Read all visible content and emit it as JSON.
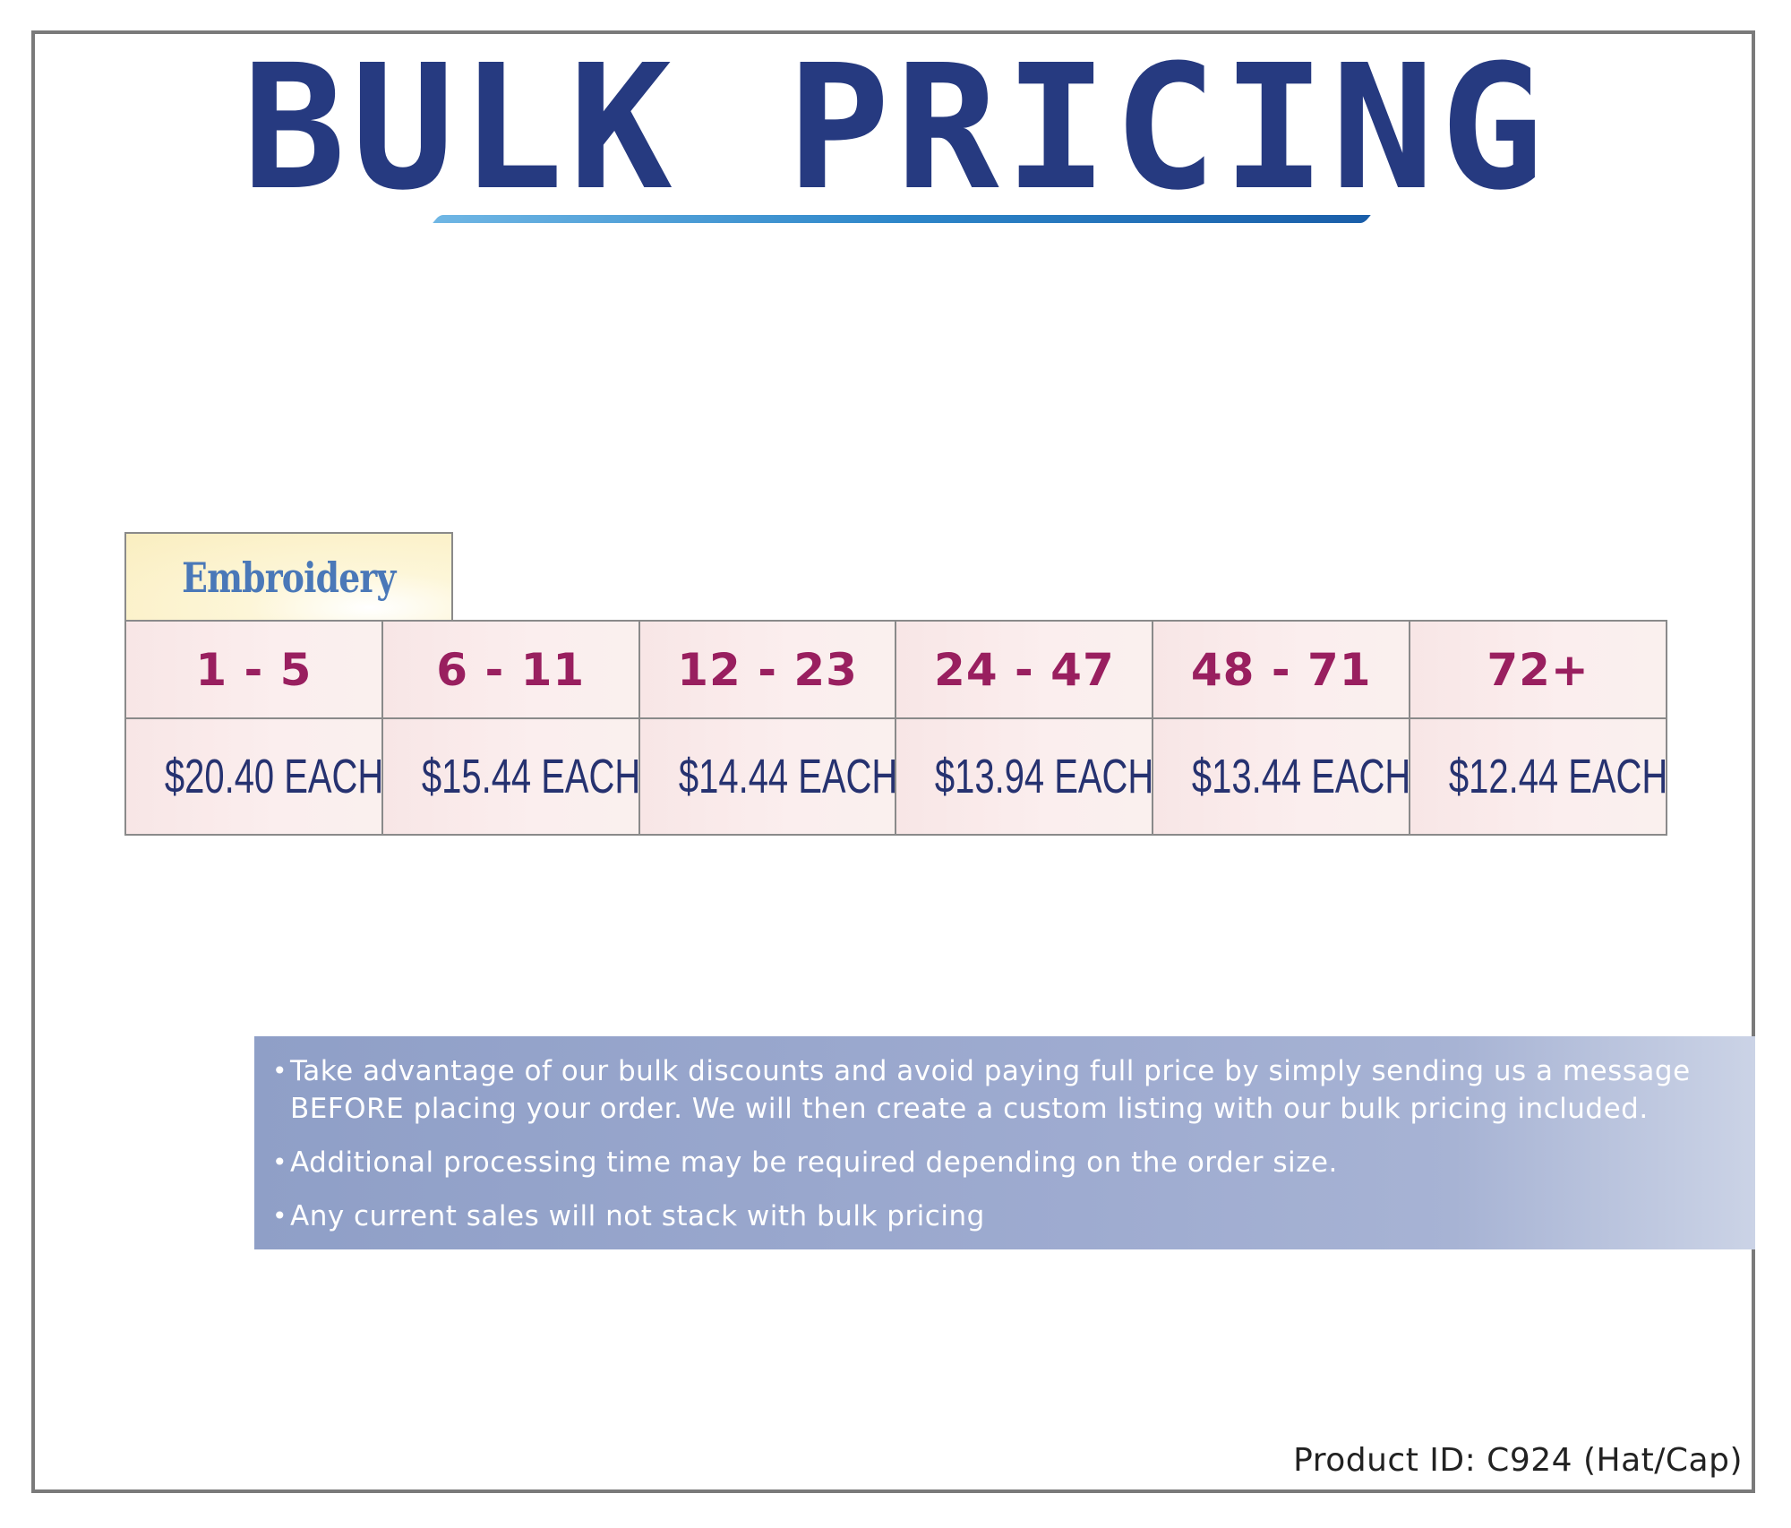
{
  "title": "BULK PRICING",
  "colors": {
    "title": "#263a80",
    "underline_start": "#6fb6e4",
    "underline_end": "#1a5ea9",
    "tab_label": "#4a78b8",
    "tab_background": "#faeec0",
    "quantity_text": "#991f5f",
    "price_text": "#263270",
    "cell_background": "#f8e6e6",
    "notes_background": "#9eabd0",
    "border": "#8a8a8a"
  },
  "pricing": {
    "tab_label": "Embroidery",
    "tiers": [
      {
        "quantity": "1 - 5",
        "price": "$20.40 EACH"
      },
      {
        "quantity": "6 - 11",
        "price": "$15.44 EACH"
      },
      {
        "quantity": "12 - 23",
        "price": "$14.44 EACH"
      },
      {
        "quantity": "24 - 47",
        "price": "$13.94 EACH"
      },
      {
        "quantity": "48 - 71",
        "price": "$13.44 EACH"
      },
      {
        "quantity": "72+",
        "price": "$12.44 EACH"
      }
    ]
  },
  "notes": {
    "bullet": "•",
    "items": [
      "Take advantage of our bulk discounts and avoid paying full price by simply sending us a message BEFORE placing your order. We will then create a custom listing with our bulk pricing included.",
      "Additional processing time may be required depending on the order size.",
      "Any current sales will not stack with bulk pricing"
    ]
  },
  "footer": {
    "product_id": "Product ID: C924 (Hat/Cap)"
  }
}
